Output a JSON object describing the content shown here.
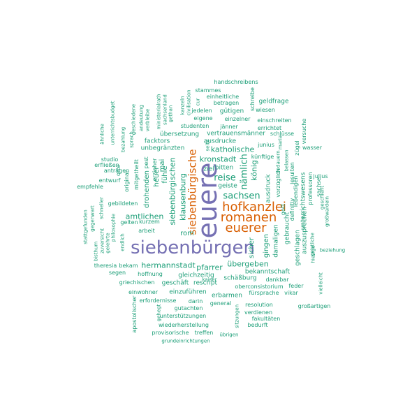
{
  "colors": {
    "purple": "#7570b3",
    "orange": "#d95f02",
    "green": "#1b9e77"
  },
  "words": [
    {
      "text": "euere",
      "color": "purple"
    },
    {
      "text": "siebenbürgen",
      "color": "purple"
    },
    {
      "text": "hofkanzlei",
      "color": "orange"
    },
    {
      "text": "romanen",
      "color": "orange"
    },
    {
      "text": "euerer",
      "color": "orange"
    },
    {
      "text": "siebenbürgische",
      "color": "orange"
    },
    {
      "text": "sachsen",
      "color": "green"
    },
    {
      "text": "reise",
      "color": "green"
    },
    {
      "text": "nämlich",
      "color": "green"
    },
    {
      "text": "könig",
      "color": "green"
    },
    {
      "text": "kronstadt",
      "color": "green"
    },
    {
      "text": "katholische",
      "color": "green"
    },
    {
      "text": "klausenburg",
      "color": "green"
    },
    {
      "text": "siebenbürgischen",
      "color": "green"
    },
    {
      "text": "hermannstadt",
      "color": "green"
    },
    {
      "text": "amtlichen",
      "color": "green"
    },
    {
      "text": "pfarrer",
      "color": "green"
    },
    {
      "text": "übergeben",
      "color": "green"
    },
    {
      "text": "rom",
      "color": "green"
    },
    {
      "text": "fühle",
      "color": "green"
    },
    {
      "text": "heuer",
      "color": "green"
    },
    {
      "text": "mai",
      "color": "green"
    },
    {
      "text": "drohenden",
      "color": "green"
    },
    {
      "text": "ziel",
      "color": "green"
    },
    {
      "text": "bitten",
      "color": "green"
    },
    {
      "text": "geiste",
      "color": "green"
    },
    {
      "text": "sicher",
      "color": "green"
    },
    {
      "text": "gingen",
      "color": "green"
    },
    {
      "text": "damaligen",
      "color": "green"
    },
    {
      "text": "ausdruck",
      "color": "green"
    },
    {
      "text": "gebraucht",
      "color": "green"
    },
    {
      "text": "gott",
      "color": "green"
    },
    {
      "text": "definitiv",
      "color": "green"
    },
    {
      "text": "vorzüglich",
      "color": "green"
    },
    {
      "text": "lebendigen",
      "color": "green"
    },
    {
      "text": "jesuiten",
      "color": "green"
    },
    {
      "text": "unterrichtswesens",
      "color": "green"
    },
    {
      "text": "geschlagen",
      "color": "green"
    },
    {
      "text": "auszusprechen",
      "color": "green"
    },
    {
      "text": "professoren",
      "color": "green"
    },
    {
      "text": "gleichzeitig",
      "color": "green"
    },
    {
      "text": "wasser",
      "color": "green"
    },
    {
      "text": "künftige",
      "color": "green"
    },
    {
      "text": "junius",
      "color": "green"
    },
    {
      "text": "ausdrucke",
      "color": "green"
    },
    {
      "text": "vertrauensmänner",
      "color": "green"
    },
    {
      "text": "schlüsse",
      "color": "green"
    },
    {
      "text": "errichtet",
      "color": "green"
    },
    {
      "text": "einschreiten",
      "color": "green"
    },
    {
      "text": "einzelner",
      "color": "green"
    },
    {
      "text": "jänner",
      "color": "green"
    },
    {
      "text": "übersetzung",
      "color": "green"
    },
    {
      "text": "studenten",
      "color": "green"
    },
    {
      "text": "eigene",
      "color": "green"
    },
    {
      "text": "gütigen",
      "color": "green"
    },
    {
      "text": "jedelen",
      "color": "green"
    },
    {
      "text": "betragen",
      "color": "green"
    },
    {
      "text": "einheitliche",
      "color": "green"
    },
    {
      "text": "stammes",
      "color": "green"
    },
    {
      "text": "handschreibens",
      "color": "green"
    },
    {
      "text": "geldfrage",
      "color": "green"
    },
    {
      "text": "wiesen",
      "color": "green"
    },
    {
      "text": "schreibe",
      "color": "green"
    },
    {
      "text": "zügel",
      "color": "green"
    },
    {
      "text": "versuche",
      "color": "green"
    },
    {
      "text": "julius",
      "color": "green"
    },
    {
      "text": "sachse",
      "color": "green"
    },
    {
      "text": "geschieht",
      "color": "green"
    },
    {
      "text": "großwardein",
      "color": "green"
    },
    {
      "text": "bedauern",
      "color": "green"
    },
    {
      "text": "maria",
      "color": "green"
    },
    {
      "text": "belassen",
      "color": "green"
    },
    {
      "text": "geistliche",
      "color": "green"
    },
    {
      "text": "hiesige",
      "color": "green"
    },
    {
      "text": "beziehung",
      "color": "green"
    },
    {
      "text": "vielleicht",
      "color": "green"
    },
    {
      "text": "bekanntschaft",
      "color": "green"
    },
    {
      "text": "schäßburg",
      "color": "green"
    },
    {
      "text": "dankbar",
      "color": "green"
    },
    {
      "text": "oberconsistorium",
      "color": "green"
    },
    {
      "text": "feder",
      "color": "green"
    },
    {
      "text": "fürsprache",
      "color": "green"
    },
    {
      "text": "vikar",
      "color": "green"
    },
    {
      "text": "resolution",
      "color": "green"
    },
    {
      "text": "großartigen",
      "color": "green"
    },
    {
      "text": "verdienen",
      "color": "green"
    },
    {
      "text": "fakultäten",
      "color": "green"
    },
    {
      "text": "bedurft",
      "color": "green"
    },
    {
      "text": "kaiser",
      "color": "green"
    },
    {
      "text": "sitzungen",
      "color": "green"
    },
    {
      "text": "erbarmen",
      "color": "green"
    },
    {
      "text": "general",
      "color": "green"
    },
    {
      "text": "übrigen",
      "color": "green"
    },
    {
      "text": "treffen",
      "color": "green"
    },
    {
      "text": "provisorische",
      "color": "green"
    },
    {
      "text": "grundeinrichtungen",
      "color": "green"
    },
    {
      "text": "wiederherstellung",
      "color": "green"
    },
    {
      "text": "unterstützungen",
      "color": "green"
    },
    {
      "text": "gutachten",
      "color": "green"
    },
    {
      "text": "darin",
      "color": "green"
    },
    {
      "text": "erfordernisse",
      "color": "green"
    },
    {
      "text": "gehegt",
      "color": "green"
    },
    {
      "text": "einwohner",
      "color": "green"
    },
    {
      "text": "einzuführen",
      "color": "green"
    },
    {
      "text": "apostolischer",
      "color": "green"
    },
    {
      "text": "geschäft",
      "color": "green"
    },
    {
      "text": "rescript",
      "color": "green"
    },
    {
      "text": "griechischen",
      "color": "green"
    },
    {
      "text": "hoffnung",
      "color": "green"
    },
    {
      "text": "segen",
      "color": "green"
    },
    {
      "text": "bekam",
      "color": "green"
    },
    {
      "text": "theresia",
      "color": "green"
    },
    {
      "text": "arbeit",
      "color": "green"
    },
    {
      "text": "gelten",
      "color": "green"
    },
    {
      "text": "kurzem",
      "color": "green"
    },
    {
      "text": "endlich",
      "color": "green"
    },
    {
      "text": "philosophie",
      "color": "green"
    },
    {
      "text": "zuversicht",
      "color": "green"
    },
    {
      "text": "gelehrte",
      "color": "green"
    },
    {
      "text": "bisthum",
      "color": "green"
    },
    {
      "text": "stattgefunden",
      "color": "green"
    },
    {
      "text": "gegenwart",
      "color": "green"
    },
    {
      "text": "schneller",
      "color": "green"
    },
    {
      "text": "gebildeten",
      "color": "green"
    },
    {
      "text": "empfehle",
      "color": "green"
    },
    {
      "text": "entwurf",
      "color": "green"
    },
    {
      "text": "anträgen",
      "color": "green"
    },
    {
      "text": "studio",
      "color": "green"
    },
    {
      "text": "erfließen",
      "color": "green"
    },
    {
      "text": "orte",
      "color": "green"
    },
    {
      "text": "original",
      "color": "green"
    },
    {
      "text": "mitgetheilt",
      "color": "green"
    },
    {
      "text": "erzieher",
      "color": "green"
    },
    {
      "text": "pest",
      "color": "green"
    },
    {
      "text": "unbegränzten",
      "color": "green"
    },
    {
      "text": "facktors",
      "color": "green"
    },
    {
      "text": "ähnliche",
      "color": "green"
    },
    {
      "text": "unterrichtsbudget",
      "color": "green"
    },
    {
      "text": "bezahlung",
      "color": "green"
    },
    {
      "text": "sprach",
      "color": "green"
    },
    {
      "text": "geschiedene",
      "color": "green"
    },
    {
      "text": "andeutung",
      "color": "green"
    },
    {
      "text": "verbleibe",
      "color": "green"
    },
    {
      "text": "ministerialrath",
      "color": "green"
    },
    {
      "text": "sachsenland",
      "color": "green"
    },
    {
      "text": "gethan",
      "color": "green"
    },
    {
      "text": "kanzeln",
      "color": "green"
    },
    {
      "text": "civilisation",
      "color": "green"
    },
    {
      "text": "cur",
      "color": "green"
    },
    {
      "text": "seite",
      "color": "green"
    }
  ]
}
